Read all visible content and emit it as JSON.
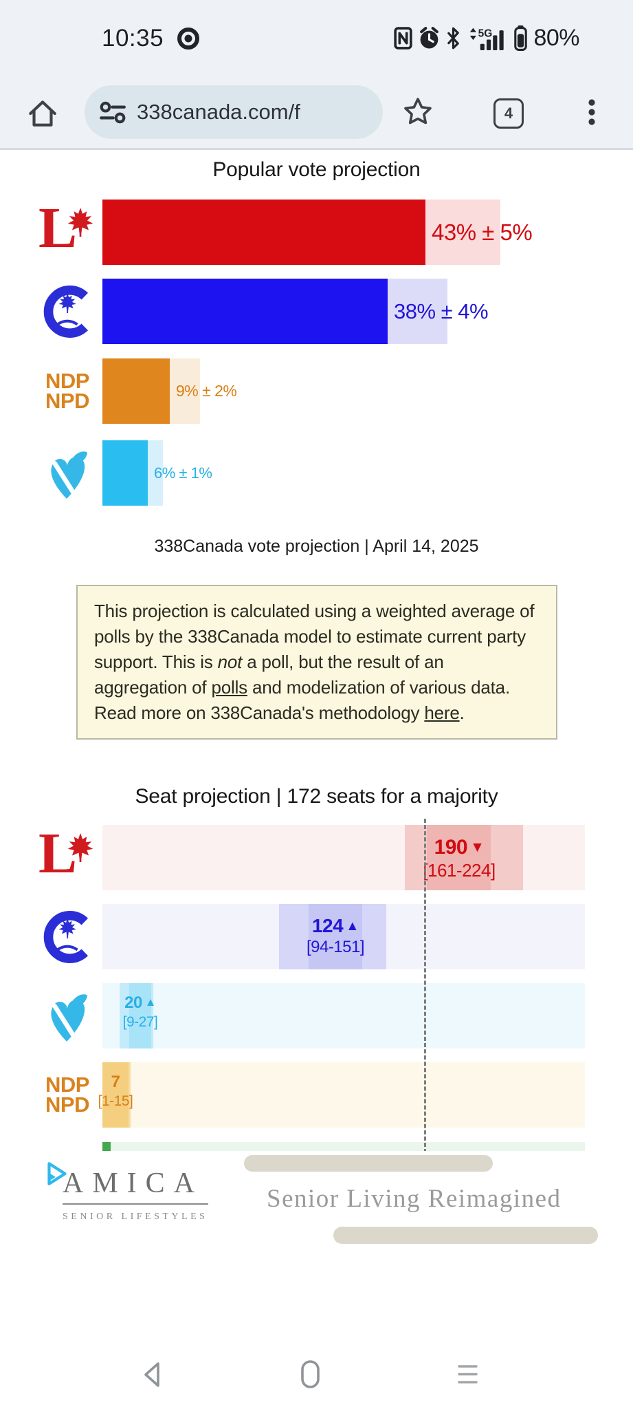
{
  "status_bar": {
    "time": "10:35",
    "battery_percent": "80%",
    "network_label": "5G"
  },
  "browser": {
    "url": "338canada.com/f",
    "tab_count": "4"
  },
  "page": {
    "vote_section": {
      "title": "Popular vote projection",
      "caption": "338Canada vote projection | April 14, 2025"
    },
    "note": {
      "segments": [
        {
          "text": "This projection is calculated using a weighted average of polls by the 338Canada model to estimate current party support. This is "
        },
        {
          "text": "not",
          "style": "italic"
        },
        {
          "text": " a poll, but the result of an aggregation of "
        },
        {
          "text": "polls",
          "style": "link"
        },
        {
          "text": " and modelization of various data. Read more on 338Canada's methodology "
        },
        {
          "text": "here",
          "style": "link"
        },
        {
          "text": "."
        }
      ]
    },
    "seat_section": {
      "title": "Seat projection | 172 seats for a majority",
      "majority_seats": 172,
      "row_order": [
        "lpc",
        "cpc",
        "bq",
        "ndp"
      ]
    }
  },
  "parties": [
    {
      "id": "lpc",
      "name": "Liberal",
      "vote_label": "43% ± 5%",
      "vote_value": 43,
      "vote_moe": 5,
      "seat_label": "190",
      "seat_estimate": 190,
      "seat_trend": "down",
      "seat_range_label": "[161-224]",
      "seat_range": [
        161,
        224
      ],
      "colors": {
        "main": "#d60c12",
        "text": "#d10c12",
        "logo": "#d01a20",
        "moe_band": "#f9dcdb",
        "seat_pale": "#fbf1f0",
        "seat_ci": "#f3cbc9",
        "seat_strip": "#eeb5b3"
      }
    },
    {
      "id": "cpc",
      "name": "Conservative",
      "vote_label": "38% ± 4%",
      "vote_value": 38,
      "vote_moe": 4,
      "seat_label": "124",
      "seat_estimate": 124,
      "seat_trend": "up",
      "seat_range_label": "[94-151]",
      "seat_range": [
        94,
        151
      ],
      "colors": {
        "main": "#1c13f0",
        "text": "#2015d6",
        "logo": "#2b2ed6",
        "moe_band": "#dddcf8",
        "seat_pale": "#f3f3fb",
        "seat_ci": "#d6d6f8",
        "seat_strip": "#c6c6f4"
      }
    },
    {
      "id": "ndp",
      "name": "NDP",
      "logo_lines": [
        "NDP",
        "NPD"
      ],
      "vote_label": "9% ± 2%",
      "vote_value": 9,
      "vote_moe": 2,
      "seat_label": "7",
      "seat_estimate": 7,
      "seat_trend": null,
      "seat_range_label": "[1-15]",
      "seat_range": [
        1,
        15
      ],
      "colors": {
        "main": "#e0861f",
        "text": "#d97f15",
        "logo": "#d9821e",
        "moe_band": "#faecda",
        "seat_pale": "#fdf8ea",
        "seat_ci": "#f8dca1",
        "seat_strip": "#f4cf80"
      }
    },
    {
      "id": "bq",
      "name": "Bloc Québécois",
      "vote_label": "6% ± 1%",
      "vote_value": 6,
      "vote_moe": 1,
      "seat_label": "20",
      "seat_estimate": 20,
      "seat_trend": "up",
      "seat_range_label": "[9-27]",
      "seat_range": [
        9,
        27
      ],
      "colors": {
        "main": "#29bdf0",
        "text": "#27b0e8",
        "logo": "#35b8e8",
        "moe_band": "#d7f0fb",
        "seat_pale": "#eef9fd",
        "seat_ci": "#c3ebfa",
        "seat_strip": "#a9e3f8"
      }
    }
  ],
  "green_party": {
    "id": "gpc",
    "colors": {
      "main": "#46a84e",
      "pale": "#eaf5eb"
    }
  },
  "chart_data": [
    {
      "type": "bar",
      "orientation": "horizontal",
      "title": "Popular vote projection",
      "caption": "338Canada vote projection | April 14, 2025",
      "categories": [
        "Liberal",
        "Conservative",
        "NDP",
        "Bloc Québécois"
      ],
      "values": [
        43,
        38,
        9,
        6
      ],
      "margins_of_error": [
        5,
        4,
        2,
        1
      ],
      "unit": "%"
    },
    {
      "type": "bar",
      "subtype": "range",
      "orientation": "horizontal",
      "title": "Seat projection | 172 seats for a majority",
      "categories": [
        "Liberal",
        "Conservative",
        "Bloc Québécois",
        "NDP"
      ],
      "estimates": [
        190,
        124,
        20,
        7
      ],
      "ranges": [
        [
          161,
          224
        ],
        [
          94,
          151
        ],
        [
          9,
          27
        ],
        [
          1,
          15
        ]
      ],
      "trends": [
        "down",
        "up",
        "up",
        null
      ],
      "majority_line": 172,
      "x_axis_range": [
        0,
        257
      ]
    }
  ],
  "ad": {
    "brand": "AMICA",
    "brand_sub": "SENIOR LIFESTYLES",
    "tagline": "Senior Living Reimagined"
  },
  "nav_bar": {
    "buttons": [
      "back",
      "home",
      "menu"
    ]
  }
}
